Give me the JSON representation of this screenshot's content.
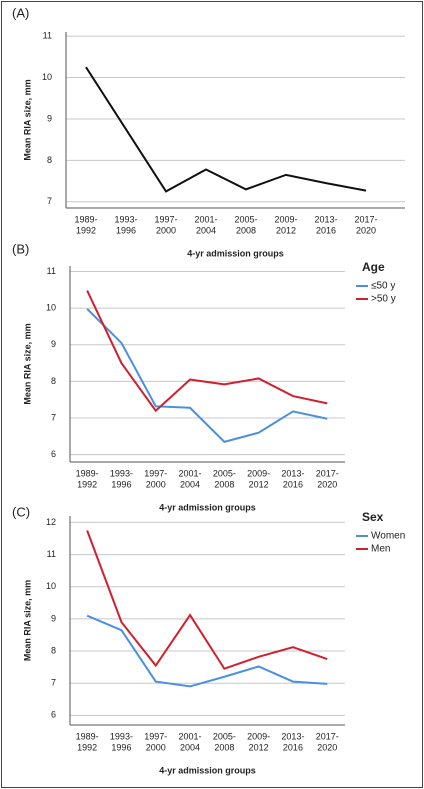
{
  "chart_data": [
    {
      "type": "line",
      "panel": "(A)",
      "y_label": "Mean RIA size, mm",
      "x_label": "4-yr admission groups",
      "categories": [
        [
          "1989-",
          "1992"
        ],
        [
          "1993-",
          "1996"
        ],
        [
          "1997-",
          "2000"
        ],
        [
          "2001-",
          "2004"
        ],
        [
          "2005-",
          "2008"
        ],
        [
          "2009-",
          "2012"
        ],
        [
          "2013-",
          "2016"
        ],
        [
          "2017-",
          "2020"
        ]
      ],
      "values": [
        10.25,
        8.75,
        7.25,
        7.78,
        7.3,
        7.65,
        7.45,
        7.27
      ],
      "color": "#111111",
      "ylim": [
        6.85,
        11.1
      ],
      "yticks": [
        7,
        8,
        9,
        10,
        11
      ],
      "grid": true
    },
    {
      "type": "line",
      "panel": "(B)",
      "y_label": "Mean RIA size, mm",
      "x_label": "4-yr admission groups",
      "categories": [
        [
          "1989-",
          "1992"
        ],
        [
          "1993-",
          "1996"
        ],
        [
          "1997-",
          "2000"
        ],
        [
          "2001-",
          "2004"
        ],
        [
          "2005-",
          "2008"
        ],
        [
          "2009-",
          "2012"
        ],
        [
          "2013-",
          "2016"
        ],
        [
          "2017-",
          "2020"
        ]
      ],
      "legend_title": "Age",
      "series": [
        {
          "name": "≤50 y",
          "color": "#4a8fe0",
          "values": [
            9.98,
            9.05,
            7.32,
            7.28,
            6.35,
            6.6,
            7.18,
            6.98
          ]
        },
        {
          "name": ">50 y",
          "color": "#d0202e",
          "values": [
            10.48,
            8.5,
            7.2,
            8.05,
            7.92,
            8.08,
            7.6,
            7.4
          ]
        }
      ],
      "ylim": [
        5.8,
        11.15
      ],
      "yticks": [
        6,
        7,
        8,
        9,
        10,
        11
      ],
      "grid": true
    },
    {
      "type": "line",
      "panel": "(C)",
      "y_label": "Mean RIA size, mm",
      "x_label": "4-yr admission groups",
      "categories": [
        [
          "1989-",
          "1992"
        ],
        [
          "1993-",
          "1996"
        ],
        [
          "1997-",
          "2000"
        ],
        [
          "2001-",
          "2004"
        ],
        [
          "2005-",
          "2008"
        ],
        [
          "2009-",
          "2012"
        ],
        [
          "2013-",
          "2016"
        ],
        [
          "2017-",
          "2020"
        ]
      ],
      "legend_title": "Sex",
      "series": [
        {
          "name": "Women",
          "color": "#4a8fe0",
          "values": [
            9.1,
            8.65,
            7.05,
            6.9,
            7.2,
            7.52,
            7.05,
            6.98
          ]
        },
        {
          "name": "Men",
          "color": "#d0202e",
          "values": [
            11.75,
            8.9,
            7.55,
            9.12,
            7.45,
            7.82,
            8.12,
            7.75
          ]
        }
      ],
      "ylim": [
        5.7,
        12.2
      ],
      "yticks": [
        6,
        7,
        8,
        9,
        10,
        11,
        12
      ],
      "grid": true
    }
  ]
}
